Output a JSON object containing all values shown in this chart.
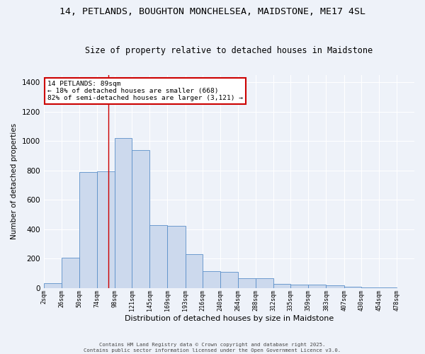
{
  "title": "14, PETLANDS, BOUGHTON MONCHELSEA, MAIDSTONE, ME17 4SL",
  "subtitle": "Size of property relative to detached houses in Maidstone",
  "xlabel": "Distribution of detached houses by size in Maidstone",
  "ylabel": "Number of detached properties",
  "footer1": "Contains HM Land Registry data © Crown copyright and database right 2025.",
  "footer2": "Contains public sector information licensed under the Open Government Licence v3.0.",
  "annotation_title": "14 PETLANDS: 89sqm",
  "annotation_line1": "← 18% of detached houses are smaller (668)",
  "annotation_line2": "82% of semi-detached houses are larger (3,121) →",
  "bar_color": "#ccd9ed",
  "bar_edge_color": "#5b8fc9",
  "vline_color": "#cc0000",
  "vline_x": 89,
  "categories": [
    "2sqm",
    "26sqm",
    "50sqm",
    "74sqm",
    "98sqm",
    "121sqm",
    "145sqm",
    "169sqm",
    "193sqm",
    "216sqm",
    "240sqm",
    "264sqm",
    "288sqm",
    "312sqm",
    "335sqm",
    "359sqm",
    "383sqm",
    "407sqm",
    "430sqm",
    "454sqm",
    "478sqm"
  ],
  "bin_edges": [
    2,
    26,
    50,
    74,
    98,
    121,
    145,
    169,
    193,
    216,
    240,
    264,
    288,
    312,
    335,
    359,
    383,
    407,
    430,
    454,
    478,
    502
  ],
  "values": [
    30,
    205,
    790,
    795,
    1020,
    940,
    430,
    425,
    230,
    115,
    110,
    65,
    65,
    25,
    22,
    22,
    20,
    10,
    5,
    2,
    0
  ],
  "ylim": [
    0,
    1450
  ],
  "yticks": [
    0,
    200,
    400,
    600,
    800,
    1000,
    1200,
    1400
  ],
  "bg_color": "#eef2f9",
  "grid_color": "#ffffff",
  "annotation_box_color": "#ffffff",
  "annotation_box_edge": "#cc0000",
  "fig_width": 6.0,
  "fig_height": 5.0,
  "dpi": 100
}
